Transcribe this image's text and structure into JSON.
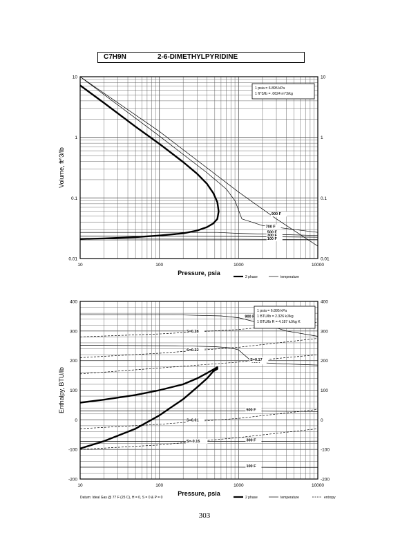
{
  "page_title": {
    "formula": "C7H9N",
    "name": "2-6-DIMETHYLPYRIDINE"
  },
  "page_number": "303",
  "colors": {
    "ink": "#000000",
    "grid": "#555555"
  },
  "chart_data": [
    {
      "type": "line",
      "scale": "log-log",
      "xlabel": "Pressure,  psia",
      "ylabel": "Volume,  ft^3/lb",
      "xlim": [
        10,
        10000
      ],
      "ylim": [
        0.01,
        10
      ],
      "x_ticks": [
        "10",
        "100",
        "1000",
        "10000"
      ],
      "y_ticks": [
        "10",
        "1",
        "0.1",
        "0.01"
      ],
      "y_ticks_right": [
        "10",
        "1",
        "0.1",
        "0.01"
      ],
      "grid": true,
      "notes": [
        "1 psia  =  6.895 kPa",
        "1 ft^3/lb  =  .0624 m^3/kg"
      ],
      "legend": [
        "2 phase",
        "temperature"
      ],
      "series": [
        {
          "name": "2 phase",
          "style": "2phase",
          "x": [
            10,
            20,
            50,
            100,
            200,
            300,
            400,
            480,
            540,
            560,
            540,
            480,
            400,
            300,
            200,
            100,
            50,
            20,
            10
          ],
          "y": [
            7.2,
            3.7,
            1.5,
            0.78,
            0.39,
            0.25,
            0.17,
            0.12,
            0.085,
            0.06,
            0.045,
            0.038,
            0.033,
            0.029,
            0.026,
            0.024,
            0.0225,
            0.0215,
            0.021
          ]
        },
        {
          "name": "900 F",
          "style": "temperature",
          "x": [
            10,
            100,
            1000,
            3000,
            10000
          ],
          "y": [
            10,
            1.25,
            0.125,
            0.045,
            0.016
          ]
        },
        {
          "name": "700 F",
          "style": "temperature",
          "x": [
            10,
            100,
            400,
            700,
            900,
            1100,
            2000,
            10000
          ],
          "y": [
            10,
            1.05,
            0.26,
            0.14,
            0.09,
            0.045,
            0.035,
            0.027
          ]
        },
        {
          "name": "500 F",
          "style": "temperature",
          "x": [
            10,
            540,
            1000,
            3000,
            10000
          ],
          "y": [
            0.027,
            0.027,
            0.026,
            0.025,
            0.024
          ]
        },
        {
          "name": "300 F",
          "style": "temperature",
          "x": [
            10,
            1000,
            10000
          ],
          "y": [
            0.0235,
            0.0232,
            0.0225
          ]
        },
        {
          "name": "100 F",
          "style": "temperature",
          "x": [
            10,
            1000,
            10000
          ],
          "y": [
            0.021,
            0.0208,
            0.0205
          ]
        }
      ],
      "curve_labels": [
        "900 F",
        "700 F",
        "500 F",
        "300 F",
        "100 F"
      ]
    },
    {
      "type": "line",
      "scale": "log-linear",
      "xlabel": "Pressure,  psia",
      "ylabel": "Enthalpy,  BTU/lb",
      "xlim": [
        10,
        10000
      ],
      "ylim": [
        -200,
        400
      ],
      "x_ticks": [
        "10",
        "100",
        "1000",
        "10000"
      ],
      "y_ticks": [
        "400",
        "300",
        "200",
        "100",
        "0",
        "-100",
        "-200"
      ],
      "y_ticks_right": [
        "400",
        "300",
        "200",
        "100",
        "0",
        "-100",
        "-200"
      ],
      "grid": true,
      "notes": [
        "1 psia  =  6.895 kPa",
        "1 BTU/lb  =  2.326 kJ/kg",
        "1 BTU/lb R  =  4.187 kJ/kg K"
      ],
      "footnote": "Datum: Ideal Gas @ 77 F (25 C), H = 0, S = 0 & P = 0",
      "legend": [
        "2 phase",
        "temperature",
        "entropy"
      ],
      "series": [
        {
          "name": "2 phase",
          "style": "2phase",
          "x": [
            10,
            20,
            50,
            100,
            200,
            300,
            400,
            480,
            540,
            540,
            480,
            400,
            300,
            200,
            100,
            50,
            20,
            10
          ],
          "y": [
            58,
            68,
            84,
            100,
            120,
            140,
            158,
            170,
            178,
            172,
            164,
            140,
            110,
            70,
            15,
            -30,
            -72,
            -97
          ]
        },
        {
          "name": "900 F",
          "style": "temperature",
          "x": [
            10,
            200,
            600,
            1000,
            2000,
            4000,
            10000
          ],
          "y": [
            355,
            354,
            351,
            345,
            325,
            300,
            282
          ]
        },
        {
          "name": "700 F",
          "style": "temperature",
          "x": [
            10,
            200,
            500,
            800,
            1000,
            1500,
            3000,
            10000
          ],
          "y": [
            252,
            250,
            247,
            243,
            236,
            195,
            190,
            185
          ]
        },
        {
          "name": "500 F",
          "style": "temperature",
          "x": [
            10,
            1000,
            3000,
            10000
          ],
          "y": [
            30,
            30,
            29,
            28
          ]
        },
        {
          "name": "300 F",
          "style": "temperature",
          "x": [
            10,
            1000,
            3000,
            10000
          ],
          "y": [
            -73,
            -73,
            -73,
            -72
          ]
        },
        {
          "name": "100 F",
          "style": "temperature",
          "x": [
            10,
            1000,
            3000,
            10000
          ],
          "y": [
            -160,
            -160,
            -161,
            -161
          ]
        },
        {
          "name": "S=0.28",
          "style": "entropy",
          "x": [
            10,
            100,
            1000,
            10000
          ],
          "y": [
            280,
            290,
            305,
            330
          ]
        },
        {
          "name": "S=0.22",
          "style": "entropy",
          "x": [
            10,
            100,
            1000,
            10000
          ],
          "y": [
            210,
            225,
            245,
            275
          ]
        },
        {
          "name": "S=0.17",
          "style": "entropy",
          "x": [
            10,
            100,
            1000,
            10000
          ],
          "y": [
            155,
            175,
            195,
            220
          ]
        },
        {
          "name": "S=0.01",
          "style": "entropy",
          "x": [
            10,
            100,
            1000,
            10000
          ],
          "y": [
            -30,
            -15,
            5,
            35
          ]
        },
        {
          "name": "S=-0.15",
          "style": "entropy",
          "x": [
            10,
            100,
            1000,
            10000
          ],
          "y": [
            -100,
            -85,
            -60,
            -30
          ]
        }
      ],
      "curve_labels": [
        "900 F",
        "700 F",
        "500 F",
        "300 F",
        "100 F",
        "S=0.28",
        "S=0.22",
        "S=0.17",
        "S=0.01",
        "S=-0.15"
      ]
    }
  ]
}
